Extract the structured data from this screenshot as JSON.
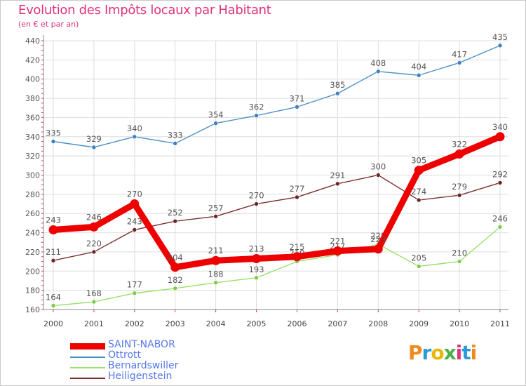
{
  "chart_data": {
    "type": "line",
    "title": "Evolution des Impôts locaux par Habitant",
    "subtitle": "(en € et par an)",
    "categories": [
      "2000",
      "2001",
      "2002",
      "2003",
      "2004",
      "2005",
      "2006",
      "2007",
      "2008",
      "2009",
      "2010",
      "2011"
    ],
    "ylim": [
      160,
      440
    ],
    "yticks": [
      160,
      180,
      200,
      220,
      240,
      260,
      280,
      300,
      320,
      340,
      360,
      380,
      400,
      420,
      440
    ],
    "grid": true,
    "legend_position": "bottom-left",
    "series": [
      {
        "name": "Ottrott",
        "color": "#4a90c8",
        "marker": "#3d7fc0",
        "values": [
          335,
          329,
          340,
          333,
          354,
          362,
          371,
          385,
          408,
          404,
          417,
          435
        ],
        "labels": [
          "335",
          "329",
          "340",
          "333",
          "354",
          "362",
          "371",
          "385",
          "408",
          "404",
          "417",
          "435"
        ]
      },
      {
        "name": "Bernardswiller",
        "color": "#9be06a",
        "marker": "#7ecb47",
        "values": [
          164,
          168,
          177,
          182,
          188,
          193,
          210,
          217,
          228,
          205,
          210,
          246
        ],
        "labels": [
          "164",
          "168",
          "177",
          "182",
          "188",
          "193",
          "210",
          "217",
          "228",
          "205",
          "210",
          "246"
        ]
      },
      {
        "name": "Heiligenstein",
        "color": "#7a2f2f",
        "marker": "#6b2525",
        "values": [
          211,
          220,
          243,
          252,
          257,
          270,
          277,
          291,
          300,
          274,
          279,
          292
        ],
        "labels": [
          "211",
          "220",
          "243",
          "252",
          "257",
          "270",
          "277",
          "291",
          "300",
          "274",
          "279",
          "292"
        ]
      },
      {
        "name": "SAINT-NABOR",
        "color": "#ee0000",
        "marker": "#ee0000",
        "values": [
          243,
          246,
          270,
          204,
          211,
          213,
          215,
          221,
          223,
          305,
          322,
          340
        ],
        "labels": [
          "243",
          "246",
          "270",
          "204",
          "211",
          "213",
          "215",
          "221",
          "223",
          "305",
          "322",
          "340"
        ]
      }
    ],
    "legend": [
      {
        "name": "SAINT-NABOR",
        "color": "#ee0000",
        "text_color": "#5577ee"
      },
      {
        "name": "Ottrott",
        "color": "#4a90c8",
        "text_color": "#5577ee"
      },
      {
        "name": "Bernardswiller",
        "color": "#9be06a",
        "text_color": "#5577ee"
      },
      {
        "name": "Heiligenstein",
        "color": "#7a2f2f",
        "text_color": "#5577ee"
      }
    ]
  },
  "logo": {
    "text": "Proxiti"
  }
}
